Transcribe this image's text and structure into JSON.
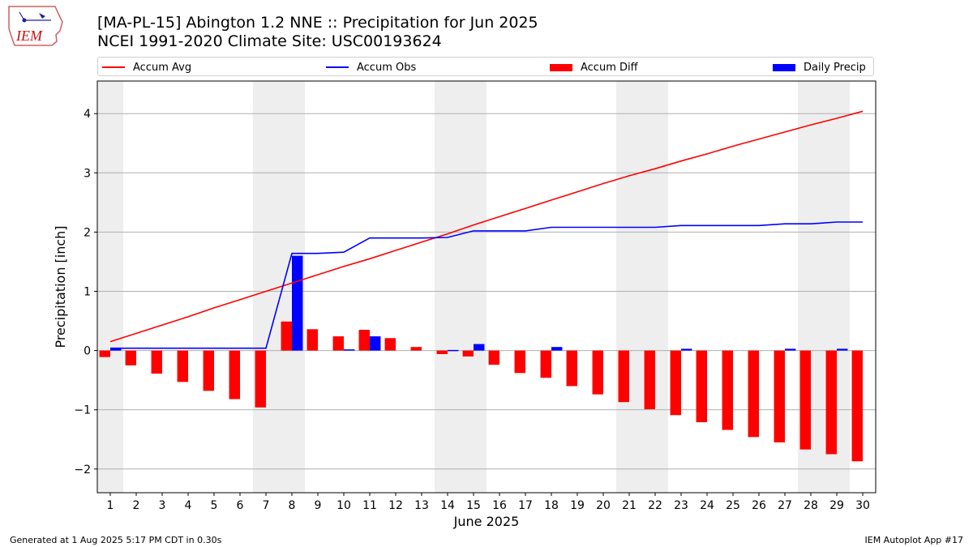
{
  "header": {
    "title_line1": "[MA-PL-15] Abington 1.2 NNE :: Precipitation for Jun 2025",
    "title_line2": "NCEI 1991-2020 Climate Site: USC00193624"
  },
  "logo": {
    "text": "IEM",
    "icon": "iowa-map-weather-logo"
  },
  "legend": {
    "accum_avg": "Accum Avg",
    "accum_obs": "Accum Obs",
    "accum_diff": "Accum Diff",
    "daily_precip": "Daily Precip"
  },
  "colors": {
    "avg": "#ff0000",
    "obs": "#0000ff",
    "diff": "#ff0000",
    "daily": "#0000ff",
    "weekend": "#eeeeee",
    "grid": "#b0b0b0"
  },
  "footer": {
    "left": "Generated at 1 Aug 2025 5:17 PM CDT in 0.30s",
    "right": "IEM Autoplot App #17"
  },
  "chart_data": {
    "type": "bar",
    "xlabel": "June 2025",
    "ylabel": "Precipitation [inch]",
    "xlim": [
      0.5,
      30.5
    ],
    "ylim": [
      -2.4,
      4.55
    ],
    "yticks": [
      -2,
      -1,
      0,
      1,
      2,
      3,
      4
    ],
    "ytick_labels": [
      "−2",
      "−1",
      "0",
      "1",
      "2",
      "3",
      "4"
    ],
    "grid": "horizontal",
    "legend_placement": "top",
    "shaded_days": [
      [
        0.5,
        1.5
      ],
      [
        6.5,
        8.5
      ],
      [
        13.5,
        15.5
      ],
      [
        20.5,
        22.5
      ],
      [
        27.5,
        29.5
      ]
    ],
    "days": [
      1,
      2,
      3,
      4,
      5,
      6,
      7,
      8,
      9,
      10,
      11,
      12,
      13,
      14,
      15,
      16,
      17,
      18,
      19,
      20,
      21,
      22,
      23,
      24,
      25,
      26,
      27,
      28,
      29,
      30
    ],
    "series": [
      {
        "name": "Accum Avg",
        "kind": "line",
        "values": [
          0.15,
          0.29,
          0.43,
          0.57,
          0.72,
          0.86,
          1.0,
          1.14,
          1.28,
          1.42,
          1.55,
          1.69,
          1.83,
          1.97,
          2.12,
          2.26,
          2.4,
          2.54,
          2.68,
          2.82,
          2.95,
          3.07,
          3.2,
          3.32,
          3.45,
          3.57,
          3.69,
          3.81,
          3.92,
          4.04
        ]
      },
      {
        "name": "Accum Obs",
        "kind": "line",
        "values": [
          0.04,
          0.04,
          0.04,
          0.04,
          0.04,
          0.04,
          0.04,
          1.64,
          1.64,
          1.66,
          1.9,
          1.9,
          1.9,
          1.91,
          2.02,
          2.02,
          2.02,
          2.08,
          2.08,
          2.08,
          2.08,
          2.08,
          2.11,
          2.11,
          2.11,
          2.11,
          2.14,
          2.14,
          2.17,
          2.17
        ]
      },
      {
        "name": "Accum Diff",
        "kind": "bar",
        "values": [
          -0.11,
          -0.25,
          -0.39,
          -0.53,
          -0.68,
          -0.82,
          -0.96,
          0.49,
          0.36,
          0.24,
          0.35,
          0.21,
          0.06,
          -0.06,
          -0.1,
          -0.24,
          -0.38,
          -0.46,
          -0.6,
          -0.74,
          -0.87,
          -0.99,
          -1.09,
          -1.21,
          -1.34,
          -1.46,
          -1.55,
          -1.67,
          -1.75,
          -1.87
        ]
      },
      {
        "name": "Daily Precip",
        "kind": "bar",
        "values": [
          0.04,
          0,
          0,
          0,
          0,
          0,
          0,
          1.6,
          0,
          0.02,
          0.24,
          0,
          0,
          0.01,
          0.11,
          0,
          0,
          0.06,
          0,
          0,
          0,
          0,
          0.03,
          0,
          0,
          0,
          0.03,
          0,
          0.03,
          0
        ]
      }
    ]
  }
}
